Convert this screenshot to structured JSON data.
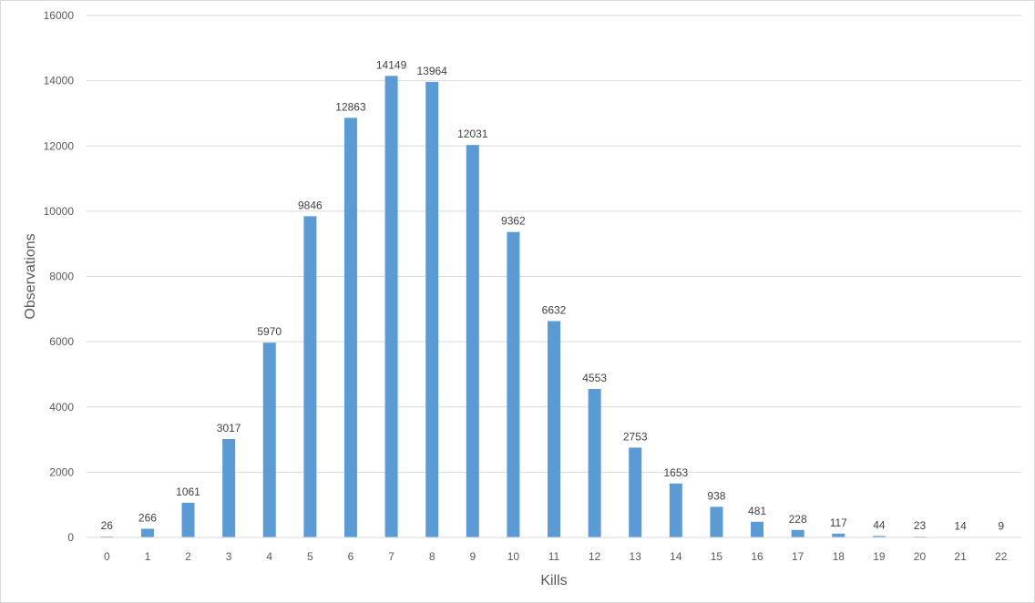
{
  "chart_data": {
    "type": "bar",
    "title": "",
    "xlabel": "Kills",
    "ylabel": "Observations",
    "categories": [
      "0",
      "1",
      "2",
      "3",
      "4",
      "5",
      "6",
      "7",
      "8",
      "9",
      "10",
      "11",
      "12",
      "13",
      "14",
      "15",
      "16",
      "17",
      "18",
      "19",
      "20",
      "21",
      "22"
    ],
    "values": [
      26,
      266,
      1061,
      3017,
      5970,
      9846,
      12863,
      14149,
      13964,
      12031,
      9362,
      6632,
      4553,
      2753,
      1653,
      938,
      481,
      228,
      117,
      44,
      23,
      14,
      9
    ],
    "ylim": [
      0,
      16000
    ],
    "yticks": [
      "0",
      "2000",
      "4000",
      "6000",
      "8000",
      "10000",
      "12000",
      "14000",
      "16000"
    ],
    "grid": true,
    "legend": "none",
    "bar_color": "#5b9bd5"
  }
}
